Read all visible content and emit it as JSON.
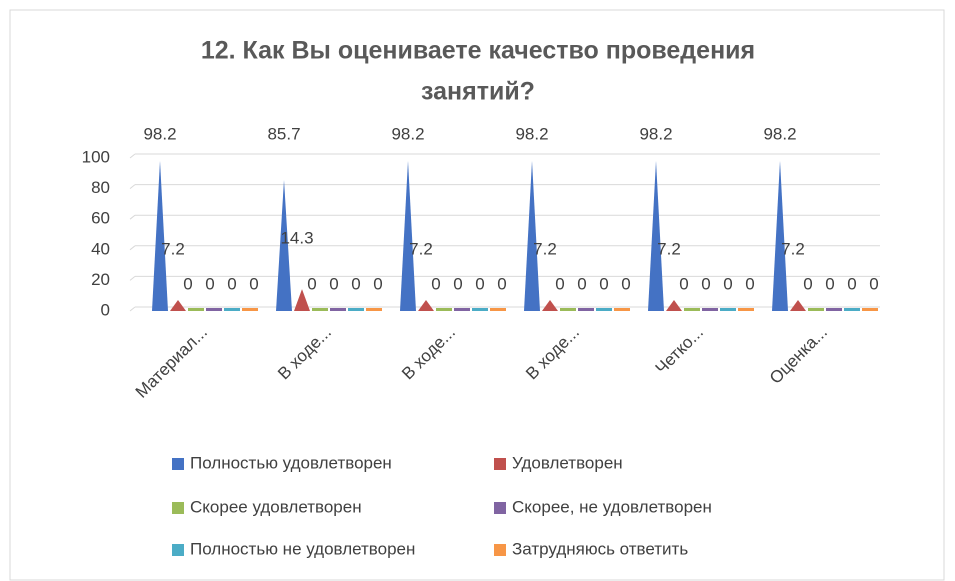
{
  "chart_data": {
    "type": "cone",
    "title": [
      "12. Как Вы оцениваете качество проведения",
      "занятий?"
    ],
    "categories": [
      "Материал...",
      "В ходе...",
      "В ходе...",
      "В ходе...",
      "Четко...",
      "Оценка..."
    ],
    "series": [
      {
        "name": "Полностью удовлетворен",
        "color": "#4472c4",
        "values": [
          98.2,
          85.7,
          98.2,
          98.2,
          98.2,
          98.2
        ]
      },
      {
        "name": "Удовлетворен",
        "color": "#c0504d",
        "values": [
          7.2,
          14.3,
          7.2,
          7.2,
          7.2,
          7.2
        ]
      },
      {
        "name": "Скорее удовлетворен",
        "color": "#9bbb59",
        "values": [
          0,
          0,
          0,
          0,
          0,
          0
        ]
      },
      {
        "name": "Скорее, не удовлетворен",
        "color": "#8064a2",
        "values": [
          0,
          0,
          0,
          0,
          0,
          0
        ]
      },
      {
        "name": "Полностью не удовлетворен",
        "color": "#4bacc6",
        "values": [
          0,
          0,
          0,
          0,
          0,
          0
        ]
      },
      {
        "name": "Затрудняюсь ответить",
        "color": "#f79646",
        "values": [
          0,
          0,
          0,
          0,
          0,
          0
        ]
      }
    ],
    "ylim": [
      0,
      100
    ],
    "yticks": [
      0,
      20,
      40,
      60,
      80,
      100
    ],
    "grid": true,
    "legend": "bottom"
  }
}
